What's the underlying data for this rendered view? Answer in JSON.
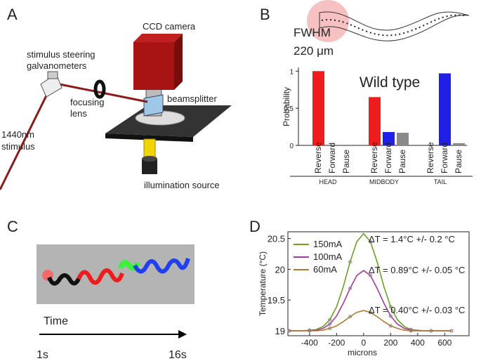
{
  "panel_labels": [
    "A",
    "B",
    "C",
    "D"
  ],
  "diagram_a": {
    "camera": "CCD camera",
    "galvanometers": [
      "stimulus steering",
      "galvanometers"
    ],
    "lens": [
      "focusing",
      "lens"
    ],
    "beamsplitter": "beamsplitter",
    "stimulus": [
      "1440nm",
      "stimulus"
    ],
    "illumination": "illumination source"
  },
  "worm_b": {
    "fwhm": "FWHM",
    "width": "220 μm"
  },
  "panel_c": {
    "time": "Time",
    "start": "1s",
    "end": "16s"
  },
  "chart_data": [
    {
      "type": "bar",
      "annotation": "Wild type",
      "y_label": "Probability",
      "categories": [
        "HEAD",
        "MIDBODY",
        "TAIL"
      ],
      "series": [
        {
          "name": "Reverse",
          "color": "#ee1c1c",
          "values": [
            1.0,
            0.65,
            0
          ]
        },
        {
          "name": "Forward",
          "color": "#1f1fe6",
          "values": [
            0,
            0.18,
            0.97
          ]
        },
        {
          "name": "Pause",
          "color": "#8a8a8a",
          "values": [
            0,
            0.17,
            0.03
          ]
        }
      ],
      "ylim": [
        0,
        1.05
      ],
      "yticks": [
        0,
        0.5,
        1
      ]
    },
    {
      "type": "line",
      "x_label": "microns",
      "y_label": "Temperature (°C)",
      "x": [
        -550,
        -500,
        -450,
        -400,
        -350,
        -300,
        -250,
        -200,
        -150,
        -100,
        -50,
        0,
        50,
        100,
        150,
        200,
        250,
        300,
        350,
        400,
        450,
        500,
        550,
        600,
        650
      ],
      "series": [
        {
          "name": "150mA",
          "color": "#6aa121",
          "values": [
            19.0,
            19.0,
            19.0,
            19.01,
            19.02,
            19.07,
            19.18,
            19.39,
            19.72,
            20.12,
            20.45,
            20.58,
            20.45,
            20.12,
            19.72,
            19.39,
            19.18,
            19.07,
            19.02,
            19.01,
            19.0,
            19.0,
            19.0,
            19.0,
            19.0
          ]
        },
        {
          "name": "100mA",
          "color": "#a13b9e",
          "values": [
            19.0,
            19.0,
            19.0,
            19.0,
            19.01,
            19.04,
            19.11,
            19.24,
            19.45,
            19.69,
            19.9,
            19.98,
            19.9,
            19.69,
            19.45,
            19.24,
            19.11,
            19.04,
            19.01,
            19.0,
            19.0,
            19.0,
            19.0,
            19.0,
            19.0
          ]
        },
        {
          "name": "60mA",
          "color": "#b07a2c",
          "values": [
            19.0,
            19.0,
            19.0,
            19.0,
            19.0,
            19.01,
            19.04,
            19.08,
            19.15,
            19.23,
            19.3,
            19.33,
            19.3,
            19.23,
            19.15,
            19.08,
            19.04,
            19.01,
            19.0,
            19.0,
            19.0,
            19.0,
            19.0,
            19.0,
            19.0
          ]
        }
      ],
      "annotations": [
        "ΔT =  1.4°C +/- 0.2 °C",
        "ΔT = 0.89°C +/- 0.05 °C",
        "ΔT = 0.40°C +/- 0.03 °C"
      ],
      "xlim": [
        -560,
        780
      ],
      "ylim": [
        18.92,
        20.61
      ],
      "xticks": [
        -400,
        -200,
        0,
        200,
        400,
        600
      ],
      "yticks": [
        19,
        19.5,
        20,
        20.5
      ]
    }
  ]
}
